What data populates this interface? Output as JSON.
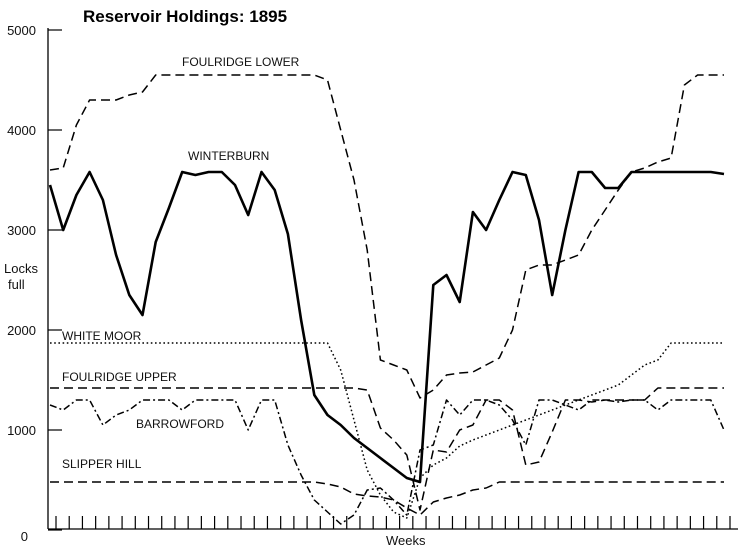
{
  "chart_data": {
    "type": "line",
    "title": "Reservoir Holdings: 1895",
    "xlabel": "Weeks",
    "ylabel_line1": "Locks",
    "ylabel_line2": "full",
    "ylim": [
      0,
      5000
    ],
    "yticks": [
      "0",
      "1000",
      "2000",
      "3000",
      "4000",
      "5000"
    ],
    "yticks_values": [
      0,
      1000,
      2000,
      3000,
      4000,
      5000
    ],
    "x_weeks": 52,
    "grid": false,
    "series": [
      {
        "name": "FOULRIDGE LOWER",
        "style": "dashed-long",
        "stroke_width": 1.5,
        "values": [
          3600,
          3620,
          4050,
          4300,
          4300,
          4300,
          4350,
          4380,
          4550,
          4550,
          4550,
          4550,
          4550,
          4550,
          4550,
          4550,
          4550,
          4550,
          4550,
          4550,
          4550,
          4500,
          4000,
          3500,
          2800,
          1700,
          1650,
          1600,
          1320,
          1400,
          1550,
          1570,
          1580,
          1650,
          1720,
          2000,
          2600,
          2650,
          2650,
          2700,
          2750,
          3000,
          3200,
          3400,
          3580,
          3620,
          3680,
          3720,
          4450,
          4550,
          4550,
          4550
        ]
      },
      {
        "name": "WINTERBURN",
        "style": "solid",
        "stroke_width": 2.6,
        "values": [
          3450,
          3000,
          3350,
          3580,
          3300,
          2750,
          2350,
          2150,
          2880,
          3220,
          3580,
          3550,
          3580,
          3580,
          3450,
          3150,
          3580,
          3400,
          2960,
          2100,
          1350,
          1150,
          1050,
          920,
          820,
          720,
          620,
          520,
          480,
          2450,
          2550,
          2280,
          3180,
          3000,
          3300,
          3580,
          3550,
          3100,
          2350,
          3000,
          3580,
          3580,
          3420,
          3420,
          3580,
          3580,
          3580,
          3580,
          3580,
          3580,
          3580,
          3560
        ]
      },
      {
        "name": "WHITE MOOR",
        "style": "dotted",
        "stroke_width": 1.5,
        "values": [
          1870,
          1870,
          1870,
          1870,
          1870,
          1870,
          1870,
          1870,
          1870,
          1870,
          1870,
          1870,
          1870,
          1870,
          1870,
          1870,
          1870,
          1870,
          1870,
          1870,
          1870,
          1870,
          1600,
          1100,
          600,
          350,
          180,
          120,
          520,
          650,
          720,
          840,
          900,
          950,
          1000,
          1050,
          1100,
          1150,
          1200,
          1250,
          1300,
          1350,
          1400,
          1450,
          1550,
          1650,
          1700,
          1870,
          1870,
          1870,
          1870,
          1870
        ]
      },
      {
        "name": "FOULRIDGE UPPER",
        "style": "dashed-long",
        "stroke_width": 1.5,
        "values": [
          1420,
          1420,
          1420,
          1420,
          1420,
          1420,
          1420,
          1420,
          1420,
          1420,
          1420,
          1420,
          1420,
          1420,
          1420,
          1420,
          1420,
          1420,
          1420,
          1420,
          1420,
          1420,
          1420,
          1420,
          1400,
          1020,
          900,
          750,
          200,
          800,
          780,
          1000,
          1050,
          1300,
          1300,
          1200,
          650,
          680,
          980,
          1300,
          1300,
          1280,
          1300,
          1300,
          1300,
          1300,
          1420,
          1420,
          1420,
          1420,
          1420,
          1420
        ]
      },
      {
        "name": "BARROWFORD",
        "style": "dash-dot",
        "stroke_width": 1.5,
        "values": [
          1250,
          1200,
          1300,
          1300,
          1050,
          1150,
          1200,
          1300,
          1300,
          1300,
          1200,
          1300,
          1300,
          1300,
          1300,
          1000,
          1300,
          1300,
          850,
          550,
          300,
          180,
          60,
          150,
          400,
          420,
          300,
          150,
          800,
          850,
          1300,
          1150,
          1300,
          1300,
          1250,
          1100,
          850,
          1300,
          1300,
          1250,
          1200,
          1300,
          1300,
          1280,
          1300,
          1300,
          1200,
          1300,
          1300,
          1300,
          1300,
          1000
        ]
      },
      {
        "name": "SLIPPER HILL",
        "style": "dashed-long",
        "stroke_width": 1.5,
        "values": [
          480,
          480,
          480,
          480,
          480,
          480,
          480,
          480,
          480,
          480,
          480,
          480,
          480,
          480,
          480,
          480,
          480,
          480,
          480,
          480,
          480,
          460,
          430,
          360,
          340,
          330,
          300,
          220,
          150,
          280,
          320,
          350,
          400,
          420,
          480,
          480,
          480,
          480,
          480,
          480,
          480,
          480,
          480,
          480,
          480,
          480,
          480,
          480,
          480,
          480,
          480,
          480
        ]
      }
    ]
  }
}
